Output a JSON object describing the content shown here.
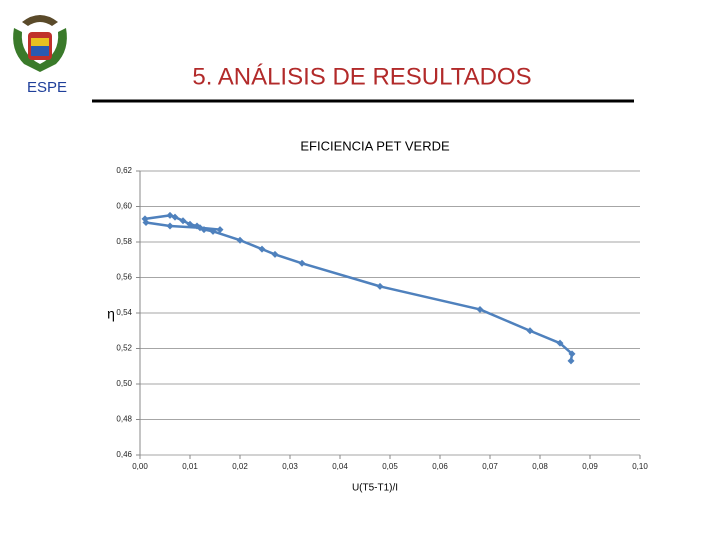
{
  "header": {
    "logo_text": "ESPE",
    "title": "5. ANÁLISIS DE RESULTADOS"
  },
  "chart_data": {
    "type": "line",
    "title": "EFICIENCIA PET VERDE",
    "x_label": "U(T5-T1)/I",
    "y_label": "η",
    "series": [
      {
        "color": "#4f81bd",
        "x": [
          0.0862,
          0.0864,
          0.084,
          0.078,
          0.068,
          0.048,
          0.0324,
          0.027,
          0.0244,
          0.02,
          0.0146,
          0.0128,
          0.0114,
          0.01,
          0.0086,
          0.007,
          0.006,
          0.001,
          0.0012,
          0.006,
          0.012,
          0.016
        ],
        "values": [
          0.513,
          0.517,
          0.523,
          0.53,
          0.542,
          0.555,
          0.568,
          0.573,
          0.576,
          0.581,
          0.586,
          0.587,
          0.589,
          0.59,
          0.592,
          0.594,
          0.595,
          0.593,
          0.591,
          0.589,
          0.588,
          0.587
        ]
      }
    ],
    "xlim": [
      0,
      0.1
    ],
    "xticks": [
      {
        "value": 0,
        "label": "0,00"
      },
      {
        "value": 0.01,
        "label": "0,01"
      },
      {
        "value": 0.02,
        "label": "0,02"
      },
      {
        "value": 0.03,
        "label": "0,03"
      },
      {
        "value": 0.04,
        "label": "0,04"
      },
      {
        "value": 0.05,
        "label": "0,05"
      },
      {
        "value": 0.06,
        "label": "0,06"
      },
      {
        "value": 0.07,
        "label": "0,07"
      },
      {
        "value": 0.08,
        "label": "0,08"
      },
      {
        "value": 0.09,
        "label": "0,09"
      },
      {
        "value": 0.1,
        "label": "0,10"
      }
    ],
    "ylim": [
      0.46,
      0.62
    ],
    "yticks": [
      {
        "value": 0.46,
        "label": "0,46"
      },
      {
        "value": 0.48,
        "label": "0,48"
      },
      {
        "value": 0.5,
        "label": "0,50"
      },
      {
        "value": 0.52,
        "label": "0,52"
      },
      {
        "value": 0.54,
        "label": "0,54"
      },
      {
        "value": 0.56,
        "label": "0,56"
      },
      {
        "value": 0.58,
        "label": "0,58"
      },
      {
        "value": 0.6,
        "label": "0,60"
      },
      {
        "value": 0.62,
        "label": "0,62"
      }
    ],
    "grid": true
  }
}
